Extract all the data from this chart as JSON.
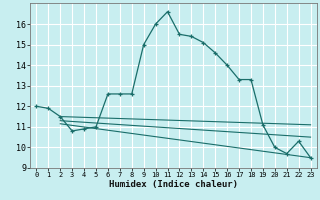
{
  "xlabel": "Humidex (Indice chaleur)",
  "bg_color": "#c8eef0",
  "grid_color": "#ffffff",
  "line_color": "#1a6e6a",
  "xlim": [
    -0.5,
    23.5
  ],
  "ylim": [
    9,
    17
  ],
  "xticks": [
    0,
    1,
    2,
    3,
    4,
    5,
    6,
    7,
    8,
    9,
    10,
    11,
    12,
    13,
    14,
    15,
    16,
    17,
    18,
    19,
    20,
    21,
    22,
    23
  ],
  "yticks": [
    9,
    10,
    11,
    12,
    13,
    14,
    15,
    16
  ],
  "main_x": [
    0,
    1,
    2,
    3,
    4,
    5,
    6,
    7,
    8,
    9,
    10,
    11,
    12,
    13,
    14,
    15,
    16,
    17,
    18,
    19,
    20,
    21,
    22,
    23
  ],
  "main_y": [
    12.0,
    11.9,
    11.5,
    10.8,
    10.9,
    11.0,
    12.6,
    12.6,
    12.6,
    15.0,
    16.0,
    16.6,
    15.5,
    15.4,
    15.1,
    14.6,
    14.0,
    13.3,
    13.3,
    11.1,
    10.0,
    9.7,
    10.3,
    9.5
  ],
  "flat_lines": [
    {
      "x": [
        2,
        23
      ],
      "y": [
        11.5,
        11.1
      ]
    },
    {
      "x": [
        2,
        23
      ],
      "y": [
        11.3,
        10.5
      ]
    },
    {
      "x": [
        2,
        23
      ],
      "y": [
        11.15,
        9.5
      ]
    }
  ]
}
